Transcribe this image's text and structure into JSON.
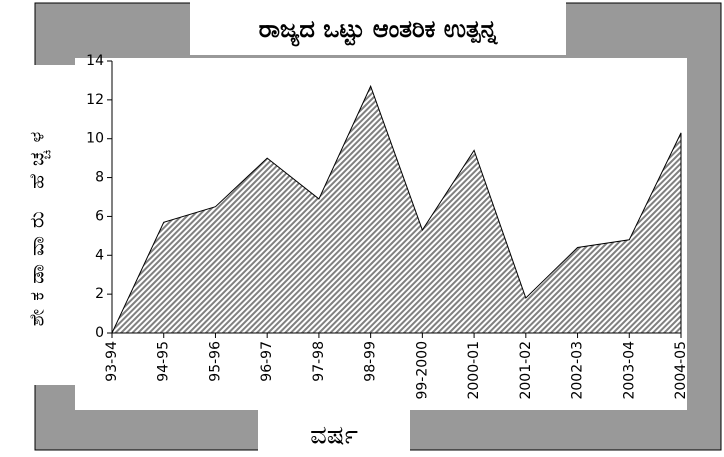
{
  "chart_data": {
    "type": "area",
    "title": "ರಾಜ್ಯದ ಒಟ್ಟು ಆಂತರಿಕ ಉತ್ಪನ್ನ",
    "x_label": "ವರ್ಷ",
    "y_label": "ಶೇಕಡಾವಾರು ಹೆಚ್ಚಳ",
    "categories": [
      "93-94",
      "94-95",
      "95-96",
      "96-97",
      "97-98",
      "98-99",
      "99-2000",
      "2000-01",
      "2001-02",
      "2002-03",
      "2003-04",
      "2004-05"
    ],
    "values": [
      0,
      5.7,
      6.5,
      9.0,
      6.9,
      12.7,
      5.3,
      9.4,
      1.8,
      4.4,
      4.8,
      10.3
    ],
    "ylim": [
      0,
      14
    ],
    "yticks": [
      0,
      2,
      4,
      6,
      8,
      10,
      12,
      14
    ],
    "color": "#808080",
    "grid": false
  }
}
